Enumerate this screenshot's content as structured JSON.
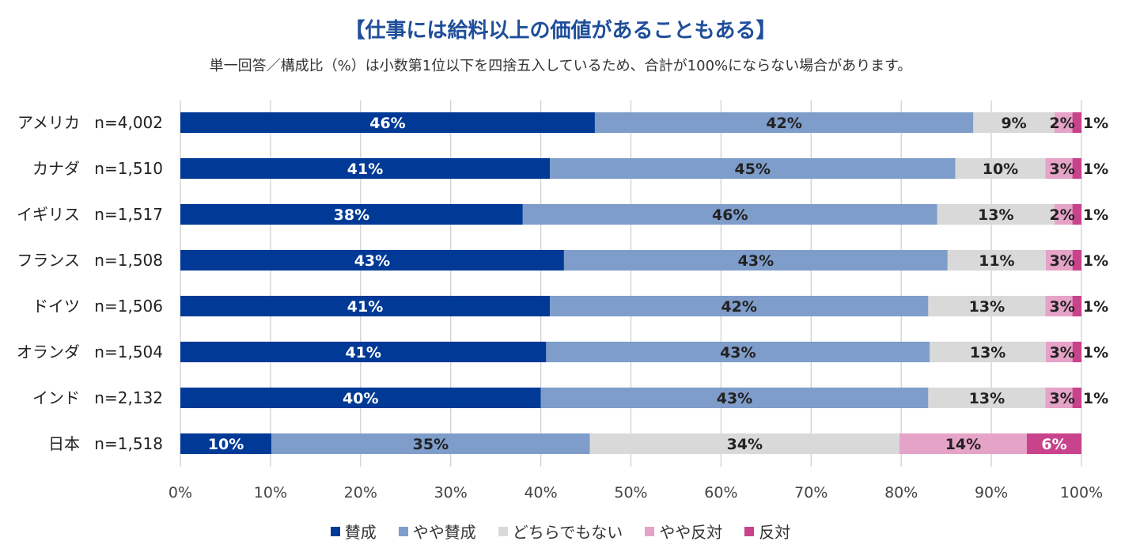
{
  "chart_data": {
    "type": "bar",
    "orientation": "horizontal-stacked-100",
    "title": "【仕事には給料以上の価値があることもある】",
    "subtitle": "単一回答／構成比（%）は小数第1位以下を四捨五入しているため、合計が100%にならない場合があります。",
    "categories": [
      "アメリカ",
      "カナダ",
      "イギリス",
      "フランス",
      "ドイツ",
      "オランダ",
      "インド",
      "日本"
    ],
    "sample_sizes": [
      "n=4,002",
      "n=1,510",
      "n=1,517",
      "n=1,508",
      "n=1,506",
      "n=1,504",
      "n=2,132",
      "n=1,518"
    ],
    "series": [
      {
        "name": "賛成",
        "color": "#003a96",
        "label_color": "#ffffff",
        "values": [
          46,
          41,
          38,
          43,
          41,
          41,
          40,
          10
        ],
        "labels": [
          "46%",
          "41%",
          "38%",
          "43%",
          "41%",
          "41%",
          "40%",
          "10%"
        ]
      },
      {
        "name": "やや賛成",
        "color": "#7f9dcb",
        "label_color": "#222222",
        "values": [
          42,
          45,
          46,
          43,
          42,
          43,
          43,
          35
        ],
        "labels": [
          "42%",
          "45%",
          "46%",
          "43%",
          "42%",
          "43%",
          "43%",
          "35%"
        ]
      },
      {
        "name": "どちらでもない",
        "color": "#d9d9d9",
        "label_color": "#222222",
        "values": [
          9,
          10,
          13,
          11,
          13,
          13,
          13,
          34
        ],
        "labels": [
          "9%",
          "10%",
          "13%",
          "11%",
          "13%",
          "13%",
          "13%",
          "34%"
        ]
      },
      {
        "name": "やや反対",
        "color": "#e6a3c8",
        "label_color": "#222222",
        "values": [
          2,
          3,
          2,
          3,
          3,
          3,
          3,
          14
        ],
        "labels": [
          "2%",
          "3%",
          "2%",
          "3%",
          "3%",
          "3%",
          "3%",
          "14%"
        ]
      },
      {
        "name": "反対",
        "color": "#c8438c",
        "label_color": "#ffffff",
        "values": [
          1,
          1,
          1,
          1,
          1,
          1,
          1,
          6
        ],
        "labels": [
          "1%",
          "1%",
          "1%",
          "1%",
          "1%",
          "1%",
          "1%",
          "6%"
        ]
      }
    ],
    "xlim": [
      0,
      100
    ],
    "x_ticks": [
      "0%",
      "10%",
      "20%",
      "30%",
      "40%",
      "50%",
      "60%",
      "70%",
      "80%",
      "90%",
      "100%"
    ],
    "grid": true,
    "legend_position": "bottom"
  }
}
